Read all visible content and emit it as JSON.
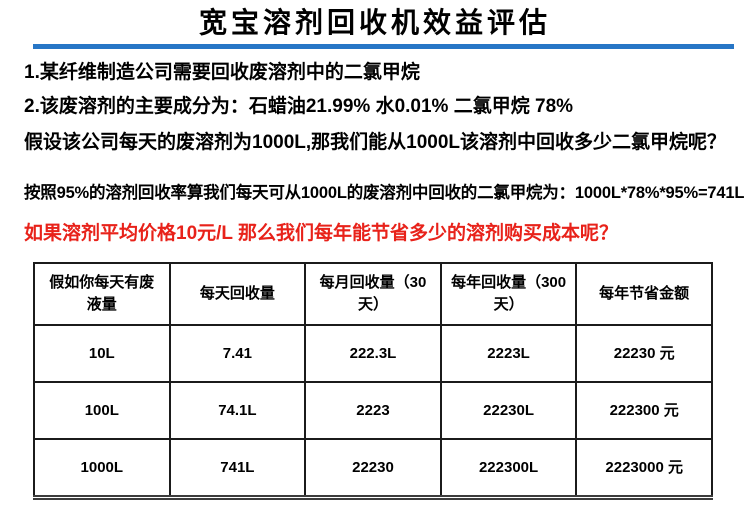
{
  "title": "宽宝溶剂回收机效益评估",
  "colors": {
    "title_rule_blue": "#2776C6",
    "highlight_red": "#E8221A",
    "text_black": "#000000",
    "table_border": "#1B1B1B"
  },
  "body_lines": {
    "line1": "1.某纤维制造公司需要回收废溶剂中的二氯甲烷",
    "line2": "2.该废溶剂的主要成分为：石蜡油21.99% 水0.01% 二氯甲烷 78%",
    "line3": "假设该公司每天的废溶剂为1000L,那我们能从1000L该溶剂中回收多少二氯甲烷呢？",
    "line4": "按照95%的溶剂回收率算我们每天可从1000L的废溶剂中回收的二氯甲烷为：1000L*78%*95%=741L",
    "line5_red": "如果溶剂平均价格10元/L 那么我们每年能节省多少的溶剂购买成本呢？"
  },
  "table": {
    "headers": [
      "假如你每天有废\n液量",
      "每天回收量",
      "每月回收量（30\n天）",
      "每年回收量（300\n天）",
      "每年节省金额"
    ],
    "rows": [
      [
        "10L",
        "7.41",
        "222.3L",
        "2223L",
        "22230 元"
      ],
      [
        "100L",
        "74.1L",
        "2223",
        "22230L",
        "222300 元"
      ],
      [
        "1000L",
        "741L",
        "22230",
        "222300L",
        "2223000 元"
      ]
    ]
  }
}
